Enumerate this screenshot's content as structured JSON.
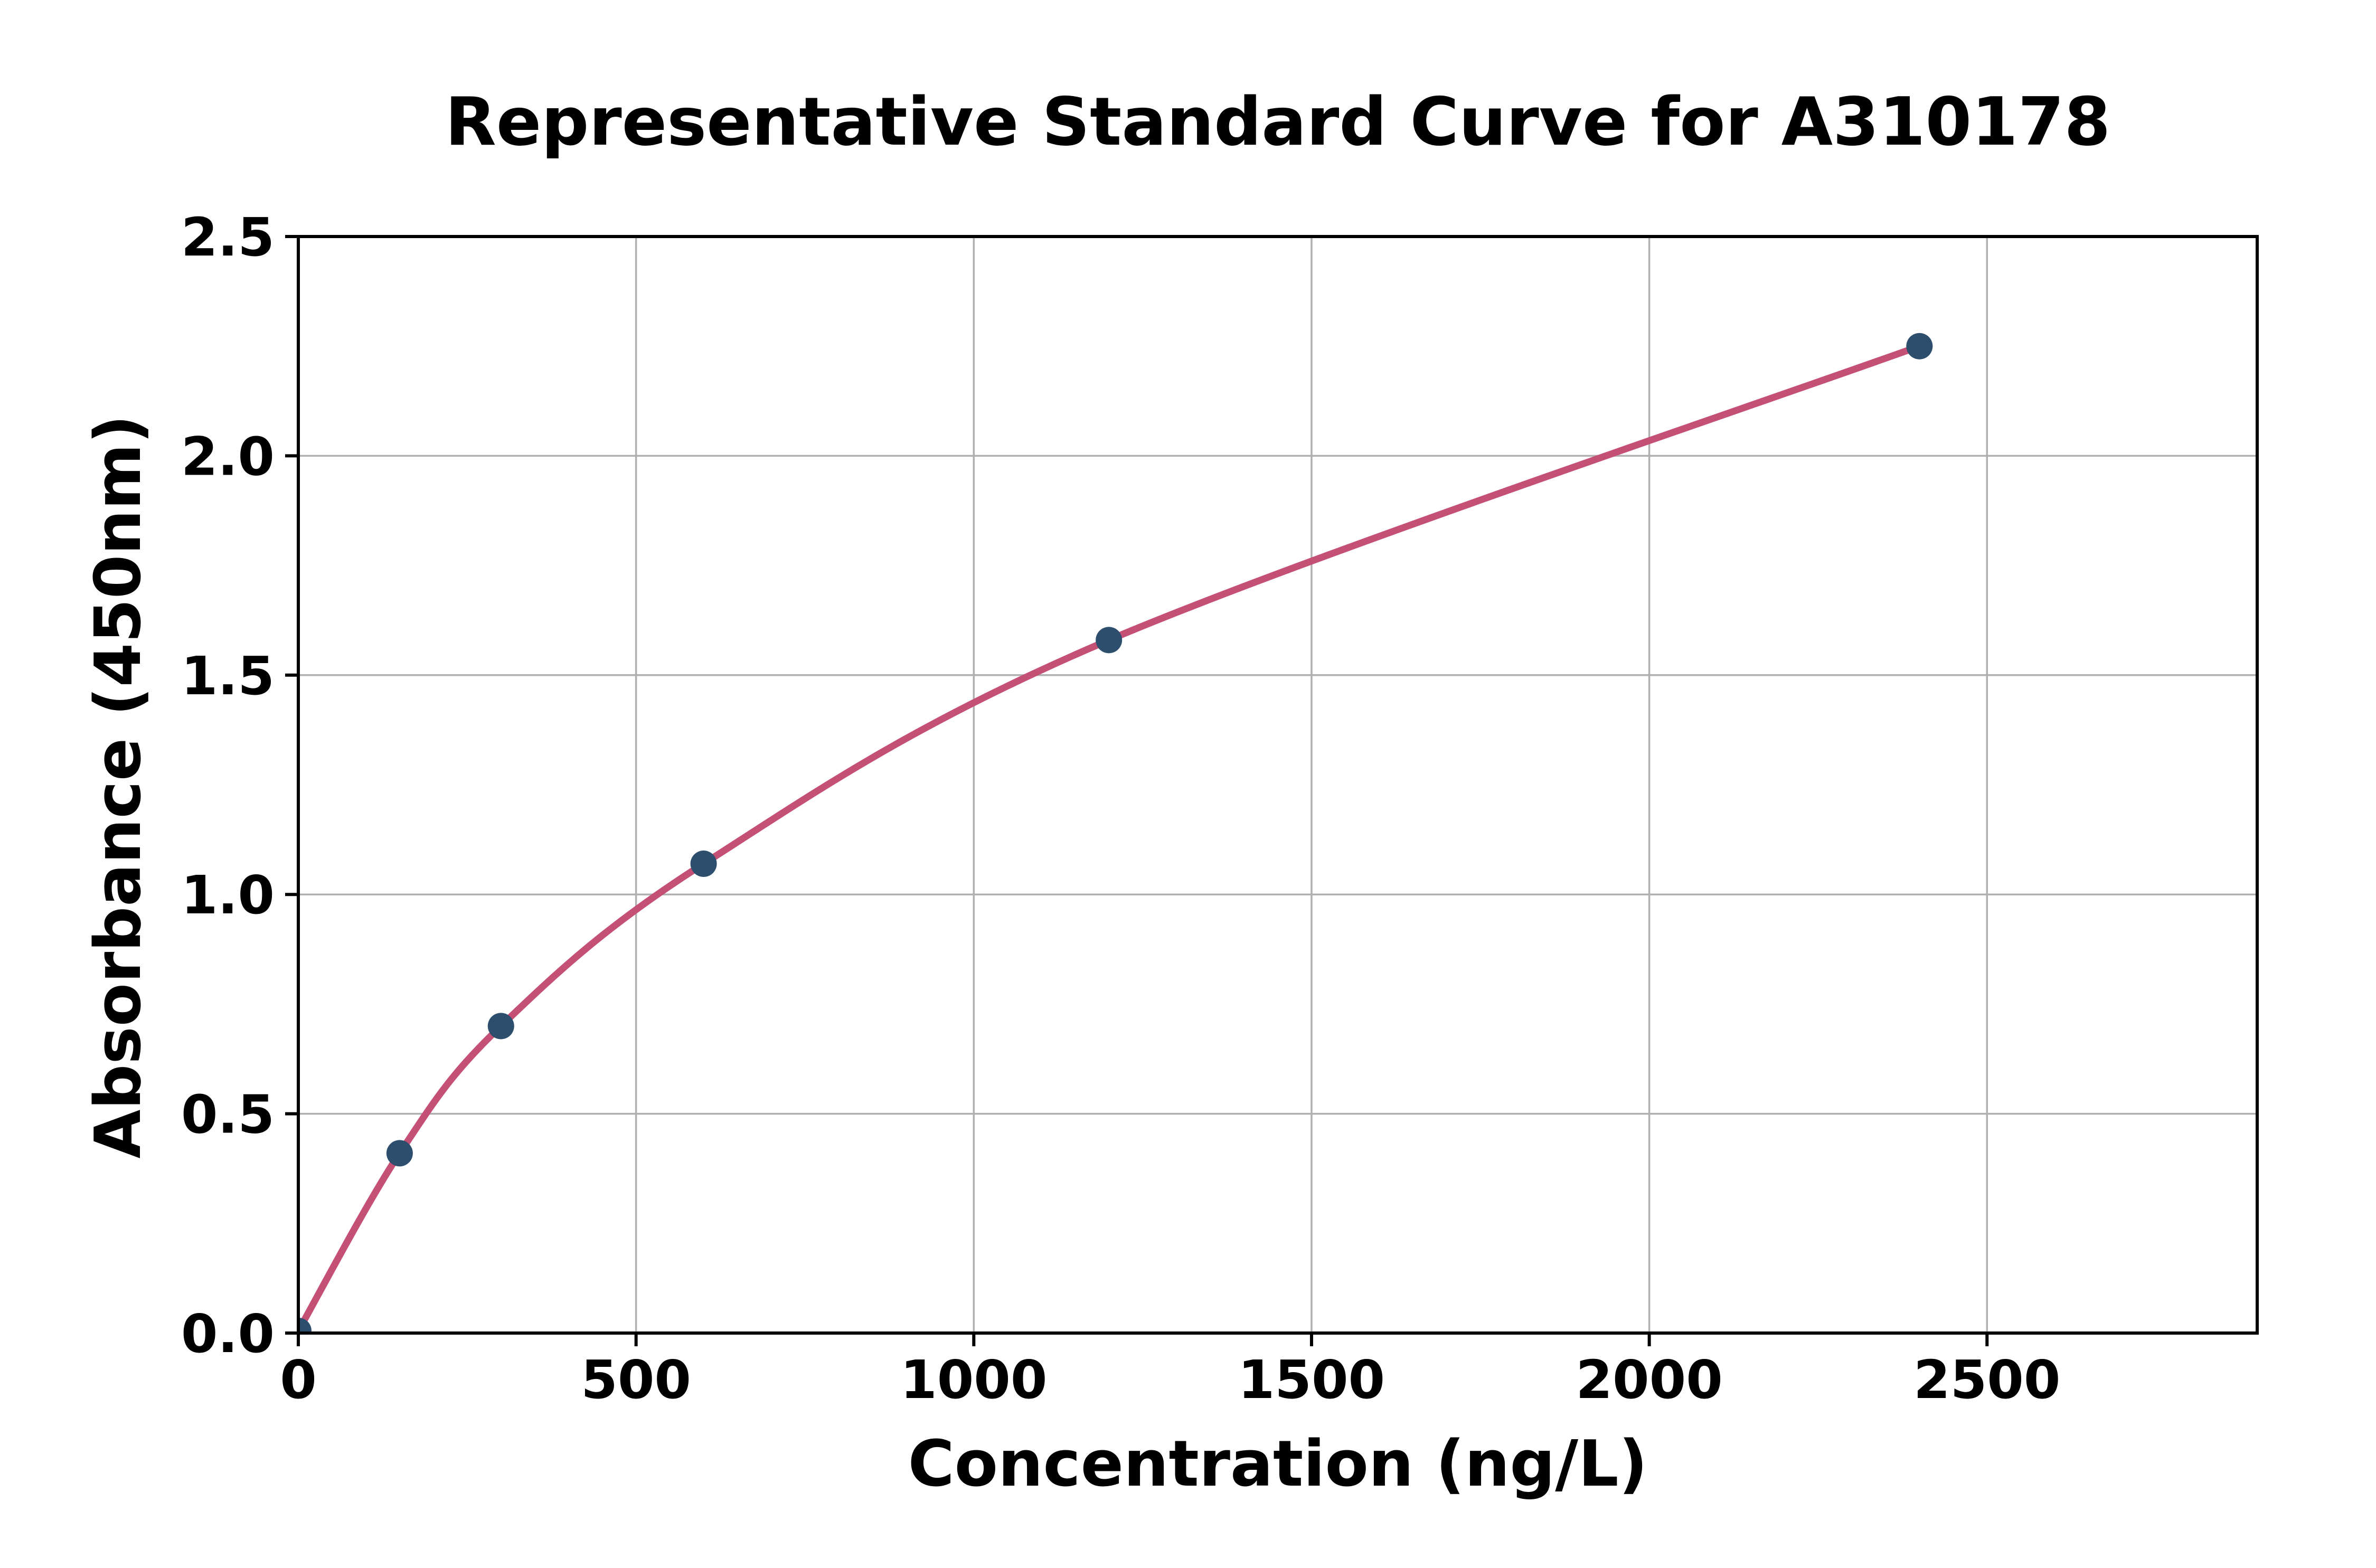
{
  "chart_data": {
    "type": "scatter",
    "title": "Representative Standard Curve for A310178",
    "xlabel": "Concentration (ng/L)",
    "ylabel": "Absorbance (450nm)",
    "xlim": [
      0,
      2900
    ],
    "ylim": [
      0,
      2.5
    ],
    "xticks": [
      0,
      500,
      1000,
      1500,
      2000,
      2500
    ],
    "xtick_labels": [
      "0",
      "500",
      "1000",
      "1500",
      "2000",
      "2500"
    ],
    "yticks": [
      0,
      0.5,
      1.0,
      1.5,
      2.0,
      2.5
    ],
    "ytick_labels": [
      "0.0",
      "0.5",
      "1.0",
      "1.5",
      "2.0",
      "2.5"
    ],
    "grid": true,
    "legend": "none",
    "points": [
      {
        "x": 0,
        "y": 0.005
      },
      {
        "x": 150,
        "y": 0.41
      },
      {
        "x": 300,
        "y": 0.7
      },
      {
        "x": 600,
        "y": 1.07
      },
      {
        "x": 1200,
        "y": 1.58
      },
      {
        "x": 2400,
        "y": 2.25
      }
    ],
    "fit_curve": {
      "description": "smooth standard-curve fit through the data points, drawn from x=0 to x=2400",
      "x_start": 0,
      "x_end": 2400
    },
    "colors": {
      "marker": "#2e4e6d",
      "curve": "#c55076",
      "grid": "#b0b0b0",
      "axis": "#000000",
      "text": "#000000",
      "background": "#ffffff"
    }
  }
}
